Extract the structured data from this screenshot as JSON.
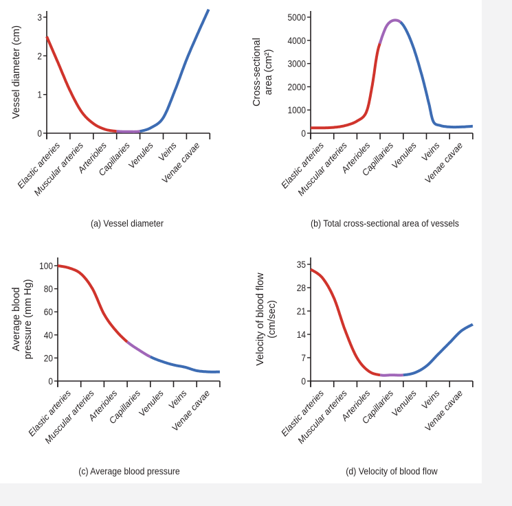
{
  "colors": {
    "arteries": "#d0342c",
    "capillaries": "#a066b8",
    "veins": "#3d6cb3",
    "axis": "#231f20"
  },
  "chart_data": [
    {
      "id": "a",
      "type": "line",
      "caption": "(a) Vessel diameter",
      "ylabel": [
        "Vessel diameter (cm)"
      ],
      "categories": [
        "Elastic arteries",
        "Muscular arteries",
        "Arterioles",
        "Capillaries",
        "Venules",
        "Veins",
        "Venae cavae"
      ],
      "ylim": [
        0,
        3.2
      ],
      "yticks": [
        "0",
        "1",
        "2",
        "3"
      ],
      "ytick_values": [
        0,
        1,
        2,
        3
      ],
      "points": [
        [
          0,
          2.5
        ],
        [
          0.5,
          1.8
        ],
        [
          1,
          1.1
        ],
        [
          1.5,
          0.55
        ],
        [
          2,
          0.25
        ],
        [
          2.5,
          0.1
        ],
        [
          3,
          0.05
        ],
        [
          3.5,
          0.04
        ],
        [
          4,
          0.05
        ],
        [
          4.5,
          0.15
        ],
        [
          5,
          0.4
        ],
        [
          5.5,
          1.1
        ],
        [
          6,
          1.9
        ],
        [
          6.5,
          2.6
        ],
        [
          6.95,
          3.2
        ]
      ],
      "segments": [
        {
          "from": 0,
          "to": 3,
          "color": "arteries"
        },
        {
          "from": 3,
          "to": 4,
          "color": "capillaries"
        },
        {
          "from": 4,
          "to": 7,
          "color": "veins"
        }
      ]
    },
    {
      "id": "b",
      "type": "line",
      "caption": "(b) Total cross-sectional area of vessels",
      "ylabel": [
        "Cross-sectional",
        "area (cm²)"
      ],
      "categories": [
        "Elastic arteries",
        "Muscular arteries",
        "Arterioles",
        "Capillaries",
        "Venules",
        "Veins",
        "Venae cavae"
      ],
      "ylim": [
        0,
        5300
      ],
      "yticks": [
        "0",
        "1000",
        "2000",
        "3000",
        "4000",
        "5000"
      ],
      "ytick_values": [
        0,
        1000,
        2000,
        3000,
        4000,
        5000
      ],
      "points": [
        [
          0,
          230
        ],
        [
          0.5,
          230
        ],
        [
          1,
          250
        ],
        [
          1.5,
          330
        ],
        [
          2,
          520
        ],
        [
          2.4,
          900
        ],
        [
          2.65,
          2000
        ],
        [
          2.85,
          3300
        ],
        [
          3,
          3900
        ],
        [
          3.3,
          4650
        ],
        [
          3.65,
          4870
        ],
        [
          4,
          4650
        ],
        [
          4.4,
          3800
        ],
        [
          4.8,
          2500
        ],
        [
          5.1,
          1300
        ],
        [
          5.3,
          500
        ],
        [
          5.6,
          330
        ],
        [
          6,
          270
        ],
        [
          6.5,
          270
        ],
        [
          7,
          300
        ]
      ],
      "segments": [
        {
          "from": 0,
          "to": 3,
          "color": "arteries"
        },
        {
          "from": 3,
          "to": 3.9,
          "color": "capillaries"
        },
        {
          "from": 3.9,
          "to": 7,
          "color": "veins"
        }
      ]
    },
    {
      "id": "c",
      "type": "line",
      "caption": "(c) Average blood pressure",
      "ylabel": [
        "Average blood",
        "pressure (mm Hg)"
      ],
      "categories": [
        "Elastic arteries",
        "Muscular arteries",
        "Arterioles",
        "Capillaries",
        "Venules",
        "Veins",
        "Venae cavae"
      ],
      "ylim": [
        0,
        108
      ],
      "yticks": [
        "0",
        "20",
        "40",
        "60",
        "80",
        "100"
      ],
      "ytick_values": [
        0,
        20,
        40,
        60,
        80,
        100
      ],
      "points": [
        [
          0,
          100
        ],
        [
          0.5,
          98
        ],
        [
          1,
          93
        ],
        [
          1.5,
          80
        ],
        [
          2,
          58
        ],
        [
          2.5,
          44
        ],
        [
          3,
          34
        ],
        [
          3.5,
          27
        ],
        [
          4,
          21
        ],
        [
          4.5,
          17
        ],
        [
          5,
          14
        ],
        [
          5.5,
          12
        ],
        [
          6,
          9
        ],
        [
          6.5,
          8
        ],
        [
          7,
          8
        ]
      ],
      "segments": [
        {
          "from": 0,
          "to": 3,
          "color": "arteries"
        },
        {
          "from": 3,
          "to": 4,
          "color": "capillaries"
        },
        {
          "from": 4,
          "to": 7,
          "color": "veins"
        }
      ]
    },
    {
      "id": "d",
      "type": "line",
      "caption": "(d) Velocity of blood flow",
      "ylabel": [
        "Velocity of blood flow",
        "(cm/sec)"
      ],
      "categories": [
        "Elastic arteries",
        "Muscular arteries",
        "Arterioles",
        "Capillaries",
        "Venules",
        "Veins",
        "Venae cavae"
      ],
      "ylim": [
        0,
        37
      ],
      "yticks": [
        "0",
        "7",
        "14",
        "21",
        "28",
        "35"
      ],
      "ytick_values": [
        0,
        7,
        14,
        21,
        28,
        35
      ],
      "points": [
        [
          0,
          33.5
        ],
        [
          0.5,
          31
        ],
        [
          1,
          25
        ],
        [
          1.5,
          15
        ],
        [
          2,
          7
        ],
        [
          2.5,
          3
        ],
        [
          3,
          1.8
        ],
        [
          3.5,
          1.8
        ],
        [
          4,
          1.8
        ],
        [
          4.5,
          2.5
        ],
        [
          5,
          4.5
        ],
        [
          5.5,
          8
        ],
        [
          6,
          11.5
        ],
        [
          6.5,
          15
        ],
        [
          7,
          17
        ]
      ],
      "segments": [
        {
          "from": 0,
          "to": 3,
          "color": "arteries"
        },
        {
          "from": 3,
          "to": 4,
          "color": "capillaries"
        },
        {
          "from": 4,
          "to": 7,
          "color": "veins"
        }
      ]
    }
  ]
}
